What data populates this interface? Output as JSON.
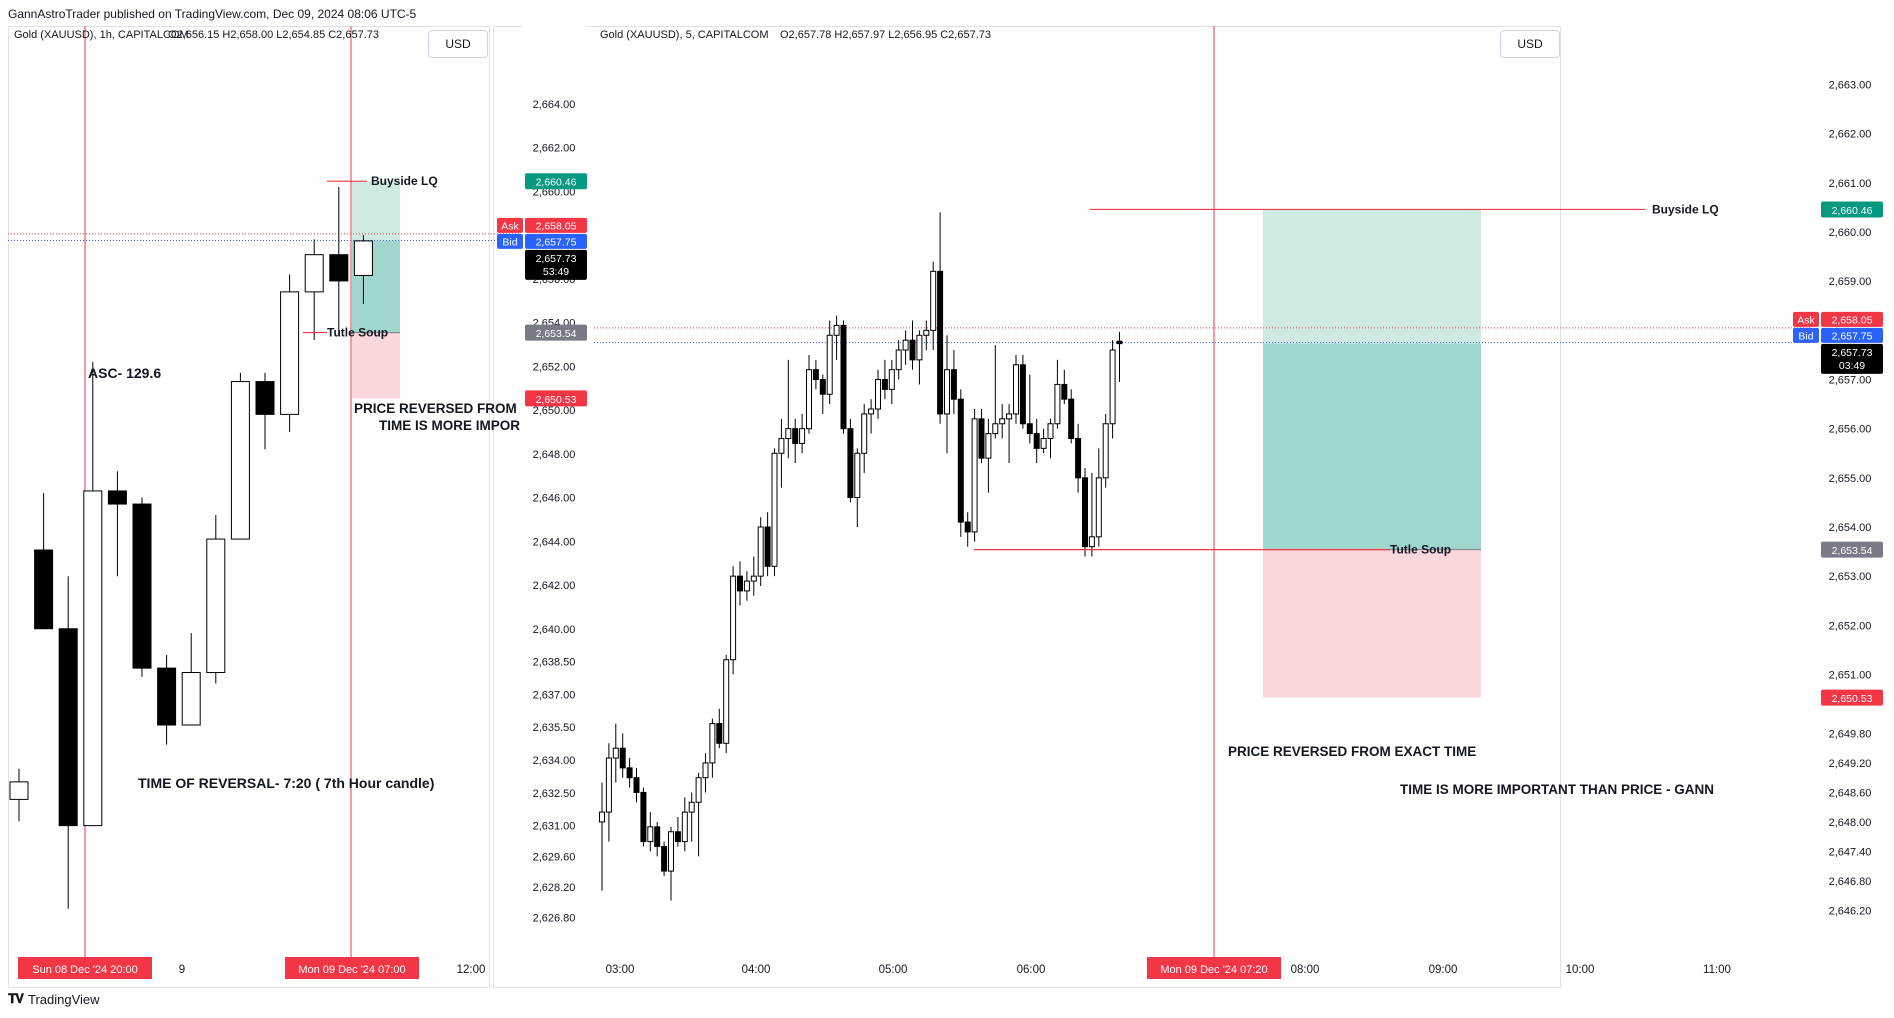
{
  "header": {
    "published": "GannAstroTrader published on TradingView.com, Dec 09, 2024 08:06 UTC-5"
  },
  "footer": {
    "brand": "TradingView",
    "logo_icon": "tradingview-logo-icon"
  },
  "colors": {
    "bull_body": "#ffffff",
    "bear_body": "#000000",
    "wick": "#000000",
    "ask": "#f23645",
    "bid": "#2962ff",
    "last": "#000000",
    "tp_label": "#089981",
    "stop_label": "#f23645",
    "entry_label": "#787b86",
    "red_line": "#f23645",
    "tp_zone": "#cfe9e3",
    "stop_zone": "#fad7da",
    "entry_zone": "#9fd7cf"
  },
  "charts": [
    {
      "id": "left",
      "title": "Gold (XAUUSD), 1h, CAPITALCOM",
      "ohlc": "O2,656.15  H2,658.00  L2,654.85  C2,657.73",
      "currency": "USD",
      "price_labels": [
        "2,664.00",
        "2,662.00",
        "2,660.00",
        "2,656.00",
        "2,654.00",
        "2,652.00",
        "2,650.00",
        "2,648.00",
        "2,646.00",
        "2,644.00",
        "2,642.00",
        "2,640.00",
        "2,638.50",
        "2,637.00",
        "2,635.50",
        "2,634.00",
        "2,632.50",
        "2,631.00",
        "2,629.60",
        "2,628.20",
        "2,626.80"
      ],
      "time_labels": [
        "9",
        "12:00"
      ],
      "time_flags": [
        "Sun 08 Dec '24  20:00",
        "Mon 09 Dec '24  07:00"
      ],
      "badges": {
        "tp": "2,660.46",
        "ask_tag": "Ask",
        "ask": "2,658.05",
        "bid_tag": "Bid",
        "bid": "2,657.75",
        "last": "2,657.73",
        "countdown": "53:49",
        "entry": "2,653.54",
        "stop": "2,650.53"
      },
      "annotations": {
        "buyside": "Buyside LQ",
        "turtle": "Tutle Soup",
        "asc": "ASC- 129.6",
        "price_reversed": "PRICE REVERSED FROM",
        "time_important": "TIME IS MORE IMPOR",
        "time_reversal": "TIME OF REVERSAL- 7:20 ( 7th Hour candle)"
      },
      "candles": [
        {
          "o": 2632.2,
          "h": 2633.6,
          "l": 2631.2,
          "c": 2633.0
        },
        {
          "o": 2643.6,
          "h": 2646.2,
          "l": 2640.0,
          "c": 2640.0
        },
        {
          "o": 2640.0,
          "h": 2642.4,
          "l": 2627.2,
          "c": 2631.0
        },
        {
          "o": 2631.0,
          "h": 2652.2,
          "l": 2631.0,
          "c": 2646.3
        },
        {
          "o": 2646.3,
          "h": 2647.2,
          "l": 2642.4,
          "c": 2645.7
        },
        {
          "o": 2645.7,
          "h": 2646.0,
          "l": 2637.8,
          "c": 2638.2
        },
        {
          "o": 2638.2,
          "h": 2638.8,
          "l": 2634.7,
          "c": 2635.6
        },
        {
          "o": 2635.6,
          "h": 2639.8,
          "l": 2635.6,
          "c": 2638.0
        },
        {
          "o": 2638.0,
          "h": 2645.2,
          "l": 2637.5,
          "c": 2644.1
        },
        {
          "o": 2644.1,
          "h": 2651.7,
          "l": 2644.1,
          "c": 2651.3
        },
        {
          "o": 2651.3,
          "h": 2651.7,
          "l": 2648.2,
          "c": 2649.8
        },
        {
          "o": 2649.8,
          "h": 2656.2,
          "l": 2649.0,
          "c": 2655.4
        },
        {
          "o": 2655.4,
          "h": 2657.8,
          "l": 2653.2,
          "c": 2657.1
        },
        {
          "o": 2657.1,
          "h": 2660.2,
          "l": 2653.5,
          "c": 2655.9
        },
        {
          "o": 2656.15,
          "h": 2658.0,
          "l": 2654.85,
          "c": 2657.73
        }
      ],
      "yrange": [
        2626.0,
        2666.0
      ]
    },
    {
      "id": "right",
      "title": "Gold (XAUUSD), 5, CAPITALCOM",
      "ohlc": "O2,657.78  H2,657.97  L2,656.95  C2,657.73",
      "currency": "USD",
      "price_labels": [
        "2,663.00",
        "2,662.00",
        "2,661.00",
        "2,660.00",
        "2,659.00",
        "2,657.00",
        "2,656.00",
        "2,655.00",
        "2,654.00",
        "2,653.00",
        "2,652.00",
        "2,651.00",
        "2,649.80",
        "2,649.20",
        "2,648.60",
        "2,648.00",
        "2,647.40",
        "2,646.80",
        "2,646.20"
      ],
      "time_labels": [
        "03:00",
        "04:00",
        "05:00",
        "06:00",
        "08:00",
        "09:00",
        "10:00",
        "11:00"
      ],
      "time_flags": [
        "Mon 09 Dec '24  07:20"
      ],
      "badges": {
        "tp": "2,660.46",
        "ask_tag": "Ask",
        "ask": "2,658.05",
        "bid_tag": "Bid",
        "bid": "2,657.75",
        "last": "2,657.73",
        "countdown": "03:49",
        "entry": "2,653.54",
        "stop": "2,650.53"
      },
      "annotations": {
        "buyside": "Buyside LQ",
        "turtle": "Tutle Soup",
        "price_reversed": "PRICE REVERSED FROM EXACT TIME",
        "time_important": "TIME IS MORE IMPORTANT THAN PRICE - GANN"
      },
      "candles": [
        {
          "o": 2648.0,
          "h": 2648.8,
          "l": 2646.6,
          "c": 2648.2
        },
        {
          "o": 2648.2,
          "h": 2649.6,
          "l": 2647.6,
          "c": 2649.3
        },
        {
          "o": 2649.3,
          "h": 2650.0,
          "l": 2648.8,
          "c": 2649.5
        },
        {
          "o": 2649.5,
          "h": 2649.8,
          "l": 2648.9,
          "c": 2649.1
        },
        {
          "o": 2649.1,
          "h": 2649.3,
          "l": 2648.7,
          "c": 2648.9
        },
        {
          "o": 2648.9,
          "h": 2649.1,
          "l": 2648.4,
          "c": 2648.6
        },
        {
          "o": 2648.6,
          "h": 2648.7,
          "l": 2647.5,
          "c": 2647.6
        },
        {
          "o": 2647.6,
          "h": 2648.2,
          "l": 2647.4,
          "c": 2647.9
        },
        {
          "o": 2647.9,
          "h": 2648.0,
          "l": 2647.3,
          "c": 2647.5
        },
        {
          "o": 2647.5,
          "h": 2647.6,
          "l": 2646.9,
          "c": 2647.0
        },
        {
          "o": 2647.0,
          "h": 2647.9,
          "l": 2646.4,
          "c": 2647.8
        },
        {
          "o": 2647.8,
          "h": 2648.1,
          "l": 2647.5,
          "c": 2647.6
        },
        {
          "o": 2647.6,
          "h": 2648.5,
          "l": 2647.4,
          "c": 2648.2
        },
        {
          "o": 2648.2,
          "h": 2648.6,
          "l": 2647.6,
          "c": 2648.4
        },
        {
          "o": 2648.4,
          "h": 2649.0,
          "l": 2647.3,
          "c": 2648.9
        },
        {
          "o": 2648.9,
          "h": 2649.4,
          "l": 2648.6,
          "c": 2649.2
        },
        {
          "o": 2649.2,
          "h": 2650.1,
          "l": 2648.9,
          "c": 2650.0
        },
        {
          "o": 2650.0,
          "h": 2650.3,
          "l": 2649.5,
          "c": 2649.6
        },
        {
          "o": 2649.6,
          "h": 2651.4,
          "l": 2649.4,
          "c": 2651.3
        },
        {
          "o": 2651.3,
          "h": 2653.2,
          "l": 2651.0,
          "c": 2653.0
        },
        {
          "o": 2653.0,
          "h": 2653.3,
          "l": 2652.4,
          "c": 2652.7
        },
        {
          "o": 2652.7,
          "h": 2653.1,
          "l": 2652.5,
          "c": 2652.9
        },
        {
          "o": 2652.9,
          "h": 2653.4,
          "l": 2652.6,
          "c": 2653.0
        },
        {
          "o": 2653.0,
          "h": 2654.2,
          "l": 2652.8,
          "c": 2654.0
        },
        {
          "o": 2654.0,
          "h": 2654.3,
          "l": 2653.0,
          "c": 2653.2
        },
        {
          "o": 2653.2,
          "h": 2655.6,
          "l": 2653.0,
          "c": 2655.5
        },
        {
          "o": 2655.5,
          "h": 2656.2,
          "l": 2654.8,
          "c": 2655.8
        },
        {
          "o": 2655.8,
          "h": 2657.4,
          "l": 2655.4,
          "c": 2656.0
        },
        {
          "o": 2656.0,
          "h": 2656.2,
          "l": 2655.3,
          "c": 2655.7
        },
        {
          "o": 2655.7,
          "h": 2656.3,
          "l": 2655.5,
          "c": 2656.0
        },
        {
          "o": 2656.0,
          "h": 2657.5,
          "l": 2655.9,
          "c": 2657.2
        },
        {
          "o": 2657.2,
          "h": 2657.4,
          "l": 2656.8,
          "c": 2657.0
        },
        {
          "o": 2657.0,
          "h": 2657.1,
          "l": 2656.3,
          "c": 2656.7
        },
        {
          "o": 2656.7,
          "h": 2658.2,
          "l": 2656.5,
          "c": 2657.9
        },
        {
          "o": 2657.9,
          "h": 2658.3,
          "l": 2657.4,
          "c": 2658.1
        },
        {
          "o": 2658.1,
          "h": 2658.2,
          "l": 2655.9,
          "c": 2656.0
        },
        {
          "o": 2656.0,
          "h": 2656.2,
          "l": 2654.5,
          "c": 2654.6
        },
        {
          "o": 2654.6,
          "h": 2655.6,
          "l": 2654.0,
          "c": 2655.5
        },
        {
          "o": 2655.5,
          "h": 2656.5,
          "l": 2655.1,
          "c": 2656.3
        },
        {
          "o": 2656.3,
          "h": 2656.6,
          "l": 2655.9,
          "c": 2656.4
        },
        {
          "o": 2656.4,
          "h": 2657.2,
          "l": 2656.2,
          "c": 2657.0
        },
        {
          "o": 2657.0,
          "h": 2657.4,
          "l": 2656.6,
          "c": 2656.8
        },
        {
          "o": 2656.8,
          "h": 2657.4,
          "l": 2656.5,
          "c": 2657.2
        },
        {
          "o": 2657.2,
          "h": 2657.8,
          "l": 2657.0,
          "c": 2657.6
        },
        {
          "o": 2657.6,
          "h": 2658.0,
          "l": 2657.3,
          "c": 2657.8
        },
        {
          "o": 2657.8,
          "h": 2658.2,
          "l": 2657.2,
          "c": 2657.4
        },
        {
          "o": 2657.4,
          "h": 2658.0,
          "l": 2656.9,
          "c": 2657.9
        },
        {
          "o": 2657.9,
          "h": 2658.2,
          "l": 2657.6,
          "c": 2658.0
        },
        {
          "o": 2658.0,
          "h": 2659.4,
          "l": 2657.6,
          "c": 2659.2
        },
        {
          "o": 2659.2,
          "h": 2660.4,
          "l": 2656.1,
          "c": 2656.3
        },
        {
          "o": 2656.3,
          "h": 2657.9,
          "l": 2655.5,
          "c": 2657.2
        },
        {
          "o": 2657.2,
          "h": 2657.6,
          "l": 2656.3,
          "c": 2656.6
        },
        {
          "o": 2656.6,
          "h": 2656.8,
          "l": 2653.8,
          "c": 2654.1
        },
        {
          "o": 2654.1,
          "h": 2654.3,
          "l": 2653.6,
          "c": 2653.9
        },
        {
          "o": 2653.9,
          "h": 2656.4,
          "l": 2653.7,
          "c": 2656.2
        },
        {
          "o": 2656.2,
          "h": 2656.4,
          "l": 2655.3,
          "c": 2655.4
        },
        {
          "o": 2655.4,
          "h": 2656.2,
          "l": 2654.7,
          "c": 2655.9
        },
        {
          "o": 2655.9,
          "h": 2657.7,
          "l": 2655.8,
          "c": 2656.1
        },
        {
          "o": 2656.1,
          "h": 2656.5,
          "l": 2655.8,
          "c": 2656.2
        },
        {
          "o": 2656.2,
          "h": 2656.5,
          "l": 2655.3,
          "c": 2656.3
        },
        {
          "o": 2656.3,
          "h": 2657.5,
          "l": 2656.1,
          "c": 2657.3
        },
        {
          "o": 2657.3,
          "h": 2657.5,
          "l": 2656.0,
          "c": 2656.1
        },
        {
          "o": 2656.1,
          "h": 2657.1,
          "l": 2655.7,
          "c": 2655.9
        },
        {
          "o": 2655.9,
          "h": 2656.2,
          "l": 2655.3,
          "c": 2655.6
        },
        {
          "o": 2655.6,
          "h": 2656.0,
          "l": 2655.5,
          "c": 2655.8
        },
        {
          "o": 2655.8,
          "h": 2656.2,
          "l": 2655.4,
          "c": 2656.1
        },
        {
          "o": 2656.1,
          "h": 2657.4,
          "l": 2656.0,
          "c": 2656.9
        },
        {
          "o": 2656.9,
          "h": 2657.2,
          "l": 2656.5,
          "c": 2656.6
        },
        {
          "o": 2656.6,
          "h": 2656.8,
          "l": 2655.7,
          "c": 2655.8
        },
        {
          "o": 2655.8,
          "h": 2656.1,
          "l": 2654.7,
          "c": 2655.0
        },
        {
          "o": 2655.0,
          "h": 2655.2,
          "l": 2653.4,
          "c": 2653.6
        },
        {
          "o": 2653.6,
          "h": 2655.1,
          "l": 2653.4,
          "c": 2653.8
        },
        {
          "o": 2653.8,
          "h": 2655.6,
          "l": 2653.6,
          "c": 2655.0
        },
        {
          "o": 2655.0,
          "h": 2656.3,
          "l": 2654.8,
          "c": 2656.1
        },
        {
          "o": 2656.1,
          "h": 2657.8,
          "l": 2655.8,
          "c": 2657.6
        },
        {
          "o": 2657.78,
          "h": 2657.97,
          "l": 2656.95,
          "c": 2657.73
        }
      ],
      "yrange": [
        2645.7,
        2663.5
      ]
    }
  ]
}
